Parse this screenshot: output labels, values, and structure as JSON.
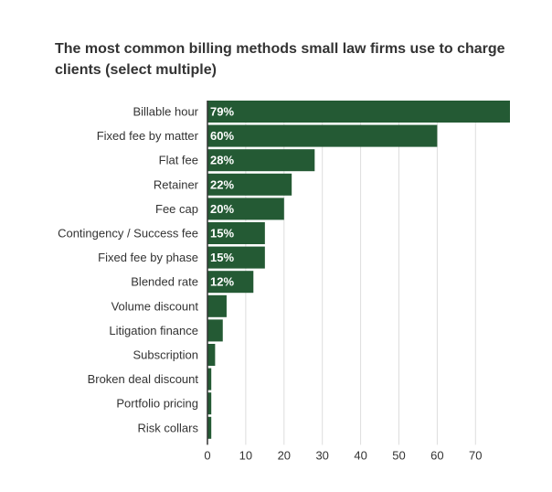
{
  "chart_data": {
    "type": "bar",
    "orientation": "horizontal",
    "title": "The most common billing methods small law firms use to charge clients (select multiple)",
    "xlabel": "",
    "ylabel": "",
    "categories": [
      "Billable hour",
      "Fixed fee by matter",
      "Flat fee",
      "Retainer",
      "Fee cap",
      "Contingency / Success fee",
      "Fixed fee by phase",
      "Blended rate",
      "Volume discount",
      "Litigation finance",
      "Subscription",
      "Broken deal discount",
      "Portfolio pricing",
      "Risk collars"
    ],
    "values": [
      79,
      60,
      28,
      22,
      20,
      15,
      15,
      12,
      5,
      4,
      2,
      1,
      1,
      1
    ],
    "data_labels": [
      "79%",
      "60%",
      "28%",
      "22%",
      "20%",
      "15%",
      "15%",
      "12%",
      "",
      "",
      "",
      "",
      "",
      ""
    ],
    "xlim": [
      0,
      79
    ],
    "xticks": [
      0,
      10,
      20,
      30,
      40,
      50,
      60,
      70
    ],
    "grid": true,
    "legend": "none",
    "bar_color": "#245a34",
    "grid_color": "#dddddd"
  }
}
